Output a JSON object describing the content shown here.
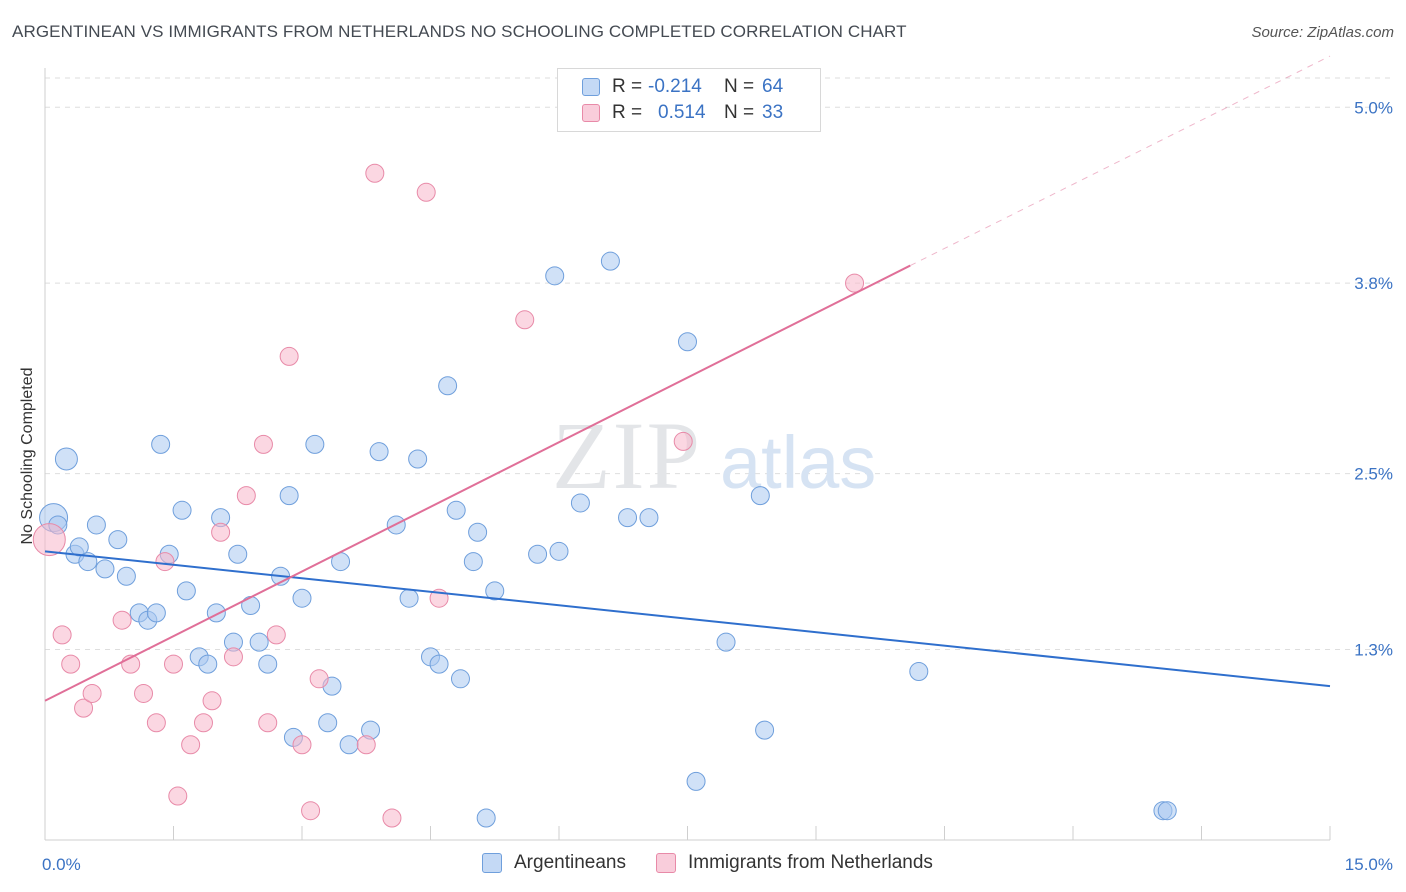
{
  "title": "ARGENTINEAN VS IMMIGRANTS FROM NETHERLANDS NO SCHOOLING COMPLETED CORRELATION CHART",
  "source": "Source: ZipAtlas.com",
  "watermark": {
    "zip": "ZIP",
    "atlas": "atlas"
  },
  "legend": {
    "rows": [
      {
        "r_label": "R =",
        "r_value": "-0.214",
        "n_label": "N =",
        "n_value": "64",
        "color": "#a9c8f0"
      },
      {
        "r_label": "R =",
        "r_value": "0.514",
        "n_label": "N =",
        "n_value": "33",
        "color": "#f7b6ca"
      }
    ]
  },
  "bottom_legend": [
    {
      "label": "Argentineans",
      "color": "#a9c8f0"
    },
    {
      "label": "Immigrants from Netherlands",
      "color": "#f7b6ca"
    }
  ],
  "chart_data": {
    "type": "scatter",
    "ylabel": "No Schooling Completed",
    "xlim": [
      0,
      15
    ],
    "ylim": [
      0,
      5.2
    ],
    "x_tick_labels": [
      {
        "value": 0,
        "label": "0.0%"
      },
      {
        "value": 15,
        "label": "15.0%"
      }
    ],
    "y_tick_labels": [
      {
        "value": 1.3,
        "label": "1.3%"
      },
      {
        "value": 2.5,
        "label": "2.5%"
      },
      {
        "value": 3.8,
        "label": "3.8%"
      },
      {
        "value": 5.0,
        "label": "5.0%"
      }
    ],
    "grid": true,
    "series": [
      {
        "name": "Argentineans",
        "color": "#a9c8f0",
        "stroke": "#6f9fdc",
        "line_color": "#2f6fcd",
        "trend": {
          "x0": 0,
          "y0": 1.97,
          "x1": 15,
          "y1": 1.05
        },
        "points": [
          [
            0.1,
            2.2,
            14
          ],
          [
            0.25,
            2.6,
            11
          ],
          [
            0.35,
            1.95,
            9
          ],
          [
            0.4,
            2.0,
            9
          ],
          [
            0.5,
            1.9,
            9
          ],
          [
            0.6,
            2.15,
            9
          ],
          [
            0.7,
            1.85,
            9
          ],
          [
            0.85,
            2.05,
            9
          ],
          [
            0.95,
            1.8,
            9
          ],
          [
            1.1,
            1.55,
            9
          ],
          [
            1.2,
            1.5,
            9
          ],
          [
            1.3,
            1.55,
            9
          ],
          [
            1.35,
            2.7,
            9
          ],
          [
            1.45,
            1.95,
            9
          ],
          [
            1.6,
            2.25,
            9
          ],
          [
            1.65,
            1.7,
            9
          ],
          [
            1.8,
            1.25,
            9
          ],
          [
            1.9,
            1.2,
            9
          ],
          [
            2.0,
            1.55,
            9
          ],
          [
            2.05,
            2.2,
            9
          ],
          [
            2.2,
            1.35,
            9
          ],
          [
            2.25,
            1.95,
            9
          ],
          [
            2.4,
            1.6,
            9
          ],
          [
            2.5,
            1.35,
            9
          ],
          [
            2.6,
            1.2,
            9
          ],
          [
            2.75,
            1.8,
            9
          ],
          [
            2.85,
            2.35,
            9
          ],
          [
            2.9,
            0.7,
            9
          ],
          [
            3.0,
            1.65,
            9
          ],
          [
            3.15,
            2.7,
            9
          ],
          [
            3.3,
            0.8,
            9
          ],
          [
            3.35,
            1.05,
            9
          ],
          [
            3.45,
            1.9,
            9
          ],
          [
            3.55,
            0.65,
            9
          ],
          [
            3.8,
            0.75,
            9
          ],
          [
            3.9,
            2.65,
            9
          ],
          [
            4.1,
            2.15,
            9
          ],
          [
            4.25,
            1.65,
            9
          ],
          [
            4.35,
            2.6,
            9
          ],
          [
            4.5,
            1.25,
            9
          ],
          [
            4.6,
            1.2,
            9
          ],
          [
            4.7,
            3.1,
            9
          ],
          [
            4.8,
            2.25,
            9
          ],
          [
            4.85,
            1.1,
            9
          ],
          [
            5.0,
            1.9,
            9
          ],
          [
            5.05,
            2.1,
            9
          ],
          [
            5.15,
            0.15,
            9
          ],
          [
            5.25,
            1.7,
            9
          ],
          [
            5.75,
            1.95,
            9
          ],
          [
            5.95,
            3.85,
            9
          ],
          [
            6.0,
            1.97,
            9
          ],
          [
            6.25,
            2.3,
            9
          ],
          [
            6.6,
            3.95,
            9
          ],
          [
            6.8,
            2.2,
            9
          ],
          [
            7.05,
            2.2,
            9
          ],
          [
            7.5,
            3.4,
            9
          ],
          [
            7.6,
            0.4,
            9
          ],
          [
            7.95,
            1.35,
            9
          ],
          [
            8.35,
            2.35,
            9
          ],
          [
            8.4,
            0.75,
            9
          ],
          [
            10.2,
            1.15,
            9
          ],
          [
            13.05,
            0.2,
            9
          ],
          [
            13.1,
            0.2,
            9
          ],
          [
            0.15,
            2.15,
            9
          ]
        ]
      },
      {
        "name": "Immigrants from Netherlands",
        "color": "#f7b6ca",
        "stroke": "#e88aa8",
        "line_color": "#e06f98",
        "trend": {
          "x0": 0,
          "y0": 0.95,
          "x1": 10.1,
          "y1": 3.92
        },
        "trend_dashed": {
          "x0": 10.1,
          "y0": 3.92,
          "x1": 15,
          "y1": 5.35
        },
        "points": [
          [
            0.05,
            2.05,
            16
          ],
          [
            0.2,
            1.4,
            9
          ],
          [
            0.3,
            1.2,
            9
          ],
          [
            0.45,
            0.9,
            9
          ],
          [
            0.55,
            1.0,
            9
          ],
          [
            0.9,
            1.5,
            9
          ],
          [
            1.0,
            1.2,
            9
          ],
          [
            1.15,
            1.0,
            9
          ],
          [
            1.3,
            0.8,
            9
          ],
          [
            1.4,
            1.9,
            9
          ],
          [
            1.5,
            1.2,
            9
          ],
          [
            1.55,
            0.3,
            9
          ],
          [
            1.7,
            0.65,
            9
          ],
          [
            1.85,
            0.8,
            9
          ],
          [
            1.95,
            0.95,
            9
          ],
          [
            2.05,
            2.1,
            9
          ],
          [
            2.2,
            1.25,
            9
          ],
          [
            2.35,
            2.35,
            9
          ],
          [
            2.55,
            2.7,
            9
          ],
          [
            2.6,
            0.8,
            9
          ],
          [
            2.7,
            1.4,
            9
          ],
          [
            2.85,
            3.3,
            9
          ],
          [
            3.0,
            0.65,
            9
          ],
          [
            3.1,
            0.2,
            9
          ],
          [
            3.2,
            1.1,
            9
          ],
          [
            3.75,
            0.65,
            9
          ],
          [
            3.85,
            4.55,
            9
          ],
          [
            4.05,
            0.15,
            9
          ],
          [
            4.6,
            1.65,
            9
          ],
          [
            4.45,
            4.42,
            9
          ],
          [
            5.6,
            3.55,
            9
          ],
          [
            7.45,
            2.72,
            9
          ],
          [
            9.45,
            3.8,
            9
          ]
        ]
      }
    ]
  }
}
